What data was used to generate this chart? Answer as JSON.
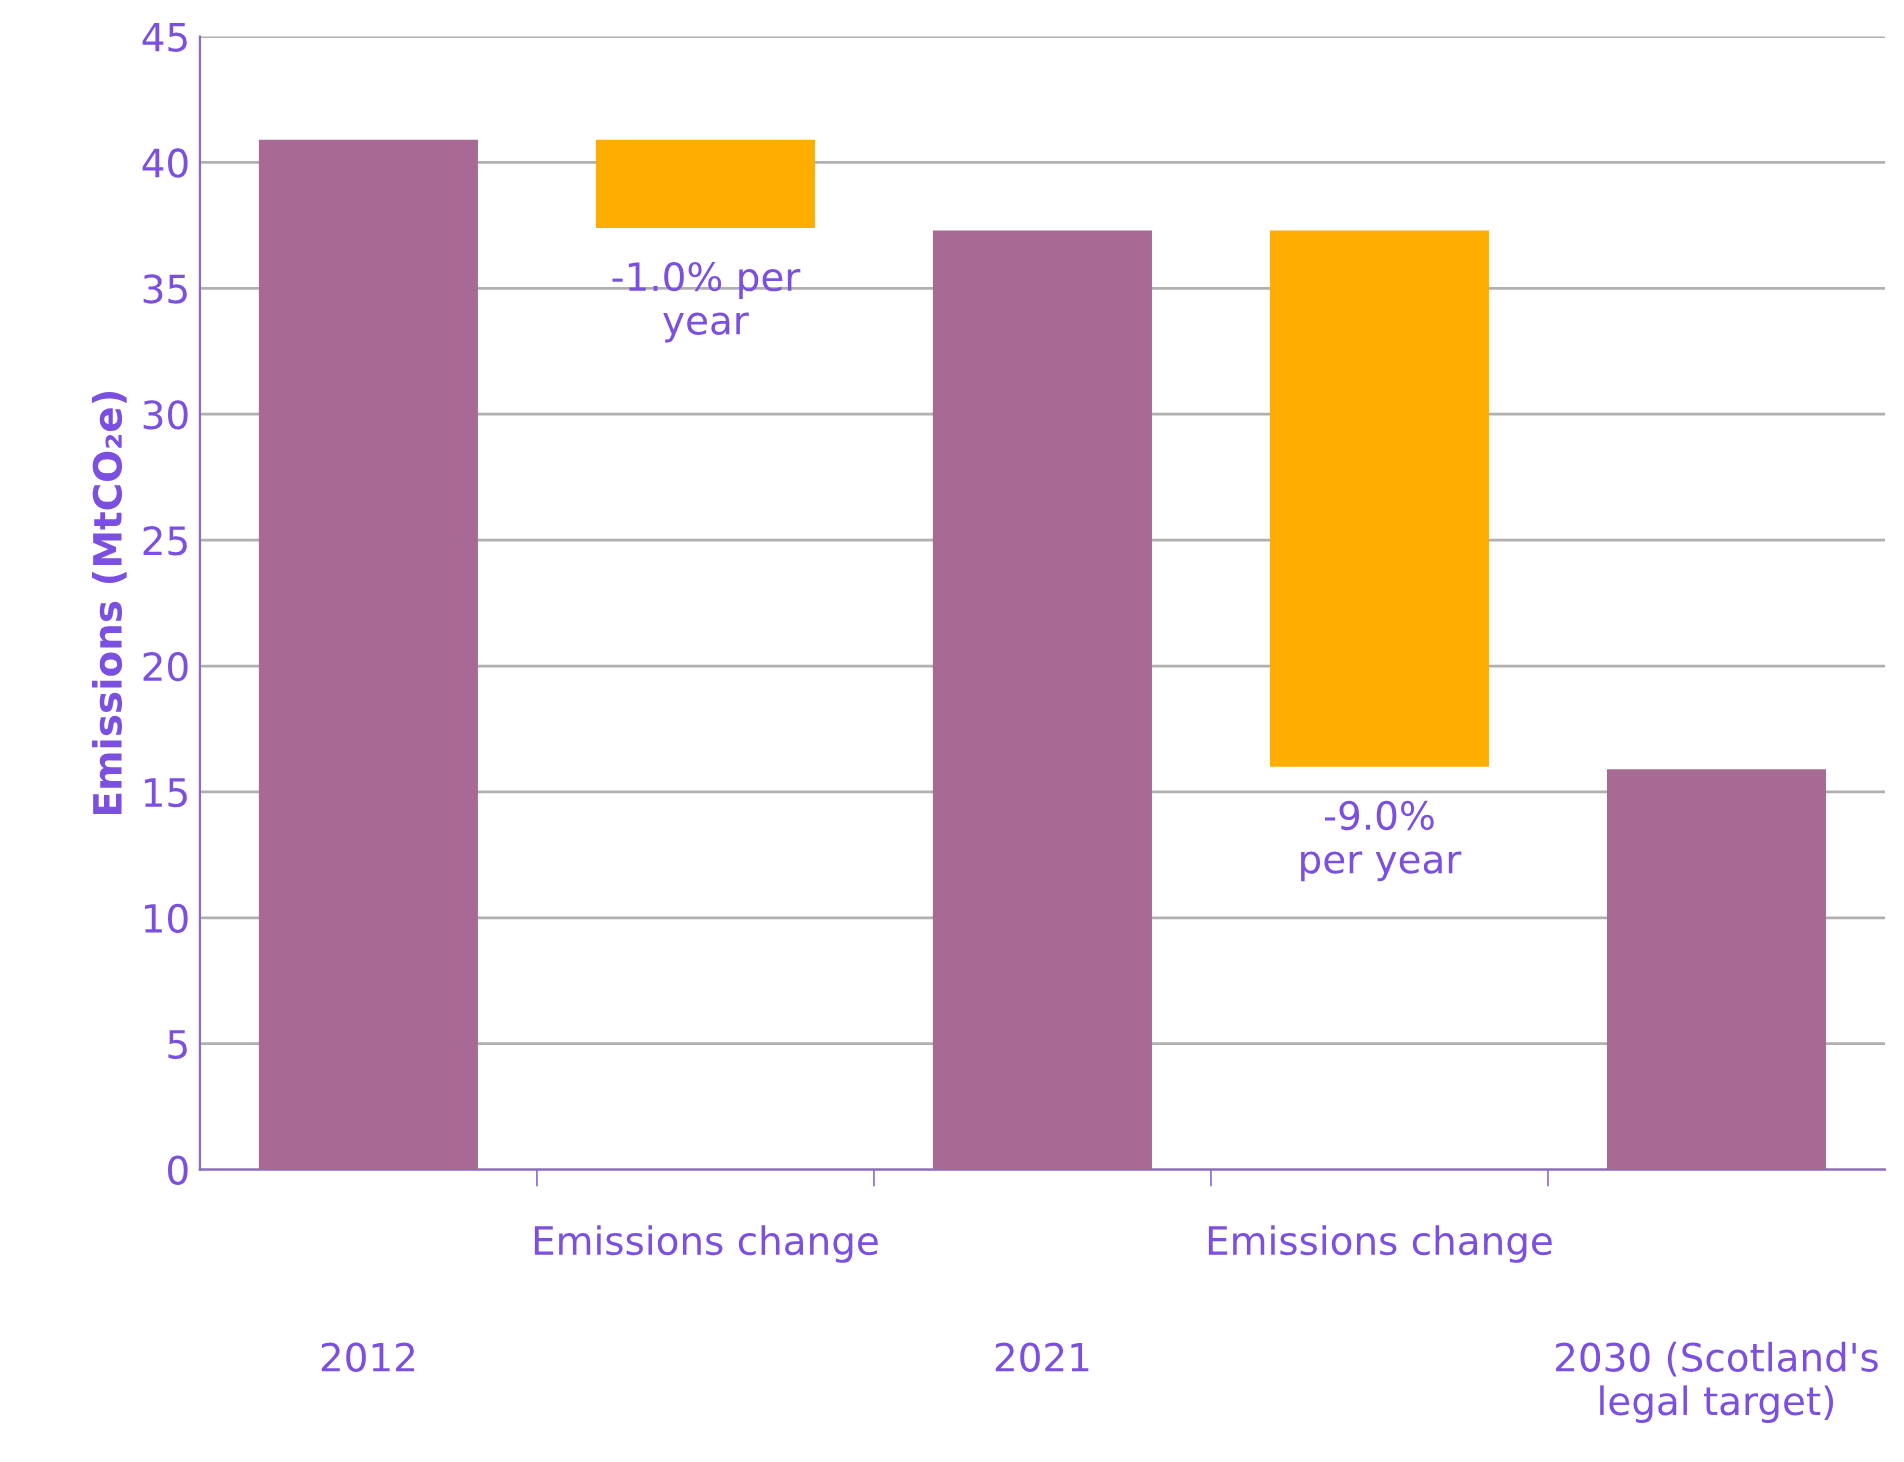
{
  "chart_data": {
    "type": "bar",
    "categories": [
      "2012",
      "Emissions change",
      "2021",
      "Emissions change",
      "2030 (Scotland's\nlegal target)"
    ],
    "values": [
      40.9,
      3.5,
      37.3,
      21.3,
      15.9
    ],
    "base": [
      0,
      37.4,
      0,
      16.0,
      0
    ],
    "colors": [
      "#a66a94",
      "#ffad00",
      "#a66a94",
      "#ffad00",
      "#a66a94"
    ],
    "ylabel": "Emissions (MtCO₂e)",
    "ylim": [
      0,
      45
    ],
    "yticks": [
      0,
      5,
      10,
      15,
      20,
      25,
      30,
      35,
      40,
      45
    ],
    "annotations": [
      "-1.0% per\nyear",
      "-9.0%\nper year"
    ],
    "grid": "y",
    "legend": false
  }
}
